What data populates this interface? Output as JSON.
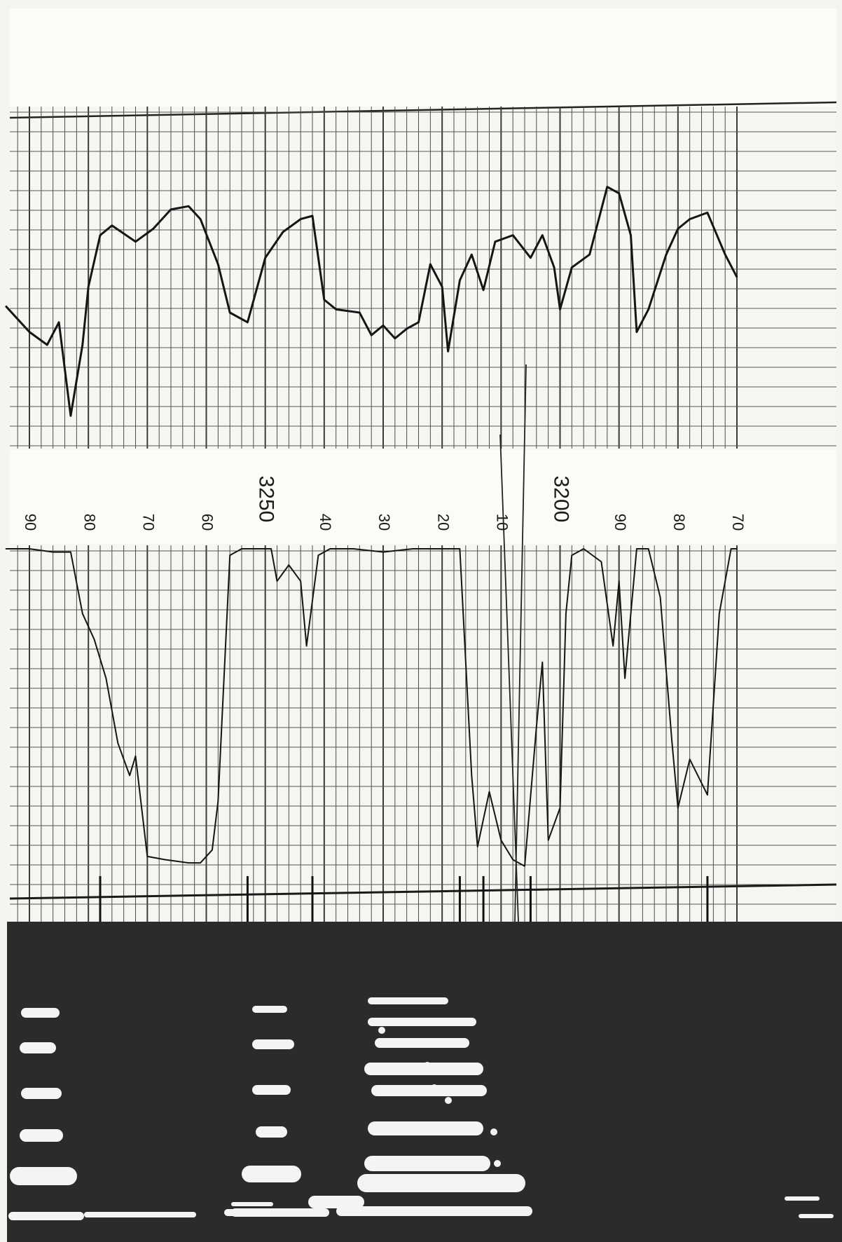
{
  "chart_data": [
    {
      "type": "line",
      "panel": "upper trace",
      "x": [
        3294,
        3290,
        3287,
        3285,
        3283,
        3281,
        3280,
        3278,
        3276,
        3272,
        3269,
        3266,
        3263,
        3261,
        3258,
        3256,
        3253,
        3250,
        3247,
        3244,
        3242,
        3240,
        3238,
        3234,
        3232,
        3230,
        3228,
        3226,
        3224,
        3222,
        3220,
        3219,
        3217,
        3215,
        3213,
        3211,
        3208,
        3205,
        3203,
        3201,
        3200,
        3198,
        3195,
        3192,
        3190,
        3188,
        3187,
        3185,
        3182,
        3180,
        3178,
        3175,
        3172,
        3170
      ],
      "y": [
        42,
        34,
        30,
        37,
        8,
        30,
        48,
        64,
        67,
        62,
        66,
        72,
        73,
        69,
        55,
        40,
        37,
        57,
        65,
        69,
        70,
        44,
        41,
        40,
        33,
        36,
        32,
        35,
        37,
        55,
        48,
        28,
        50,
        58,
        47,
        62,
        64,
        57,
        64,
        54,
        41,
        54,
        58,
        79,
        77,
        64,
        34,
        41,
        58,
        66,
        69,
        71,
        58,
        51
      ]
    },
    {
      "type": "line",
      "panel": "lower trace",
      "x": [
        3294,
        3290,
        3286,
        3283,
        3281,
        3280,
        3279,
        3277,
        3275,
        3273,
        3272,
        3270,
        3267,
        3263,
        3261,
        3259,
        3258,
        3256,
        3254,
        3251,
        3249,
        3248,
        3246,
        3244,
        3243,
        3241,
        3239,
        3235,
        3230,
        3225,
        3222,
        3219,
        3217,
        3215,
        3214,
        3212,
        3210,
        3208,
        3206,
        3204,
        3203,
        3202,
        3200,
        3199,
        3198,
        3196,
        3193,
        3191,
        3190,
        3189,
        3187,
        3185,
        3183,
        3181,
        3180,
        3178,
        3175,
        3173,
        3171,
        3170
      ],
      "y": [
        100,
        100,
        99,
        99,
        80,
        76,
        72,
        60,
        40,
        30,
        36,
        5,
        4,
        3,
        3,
        7,
        22,
        98,
        100,
        100,
        100,
        90,
        95,
        90,
        70,
        98,
        100,
        100,
        99,
        100,
        100,
        100,
        100,
        30,
        8,
        25,
        10,
        4,
        2,
        45,
        65,
        10,
        20,
        80,
        98,
        100,
        96,
        70,
        90,
        60,
        100,
        100,
        85,
        40,
        20,
        35,
        24,
        80,
        100,
        100
      ]
    }
  ],
  "scale_labels": [
    "90",
    "80",
    "70",
    "60",
    "3250",
    "40",
    "30",
    "20",
    "10",
    "3200",
    "90",
    "80",
    "70"
  ],
  "colors": {
    "paper": "#f4f4f0",
    "grid": "#3a3a3a",
    "trace": "#151515",
    "spectrogram_background": "#2b2b2b",
    "spectrogram_energy": "#f4f4f4"
  }
}
